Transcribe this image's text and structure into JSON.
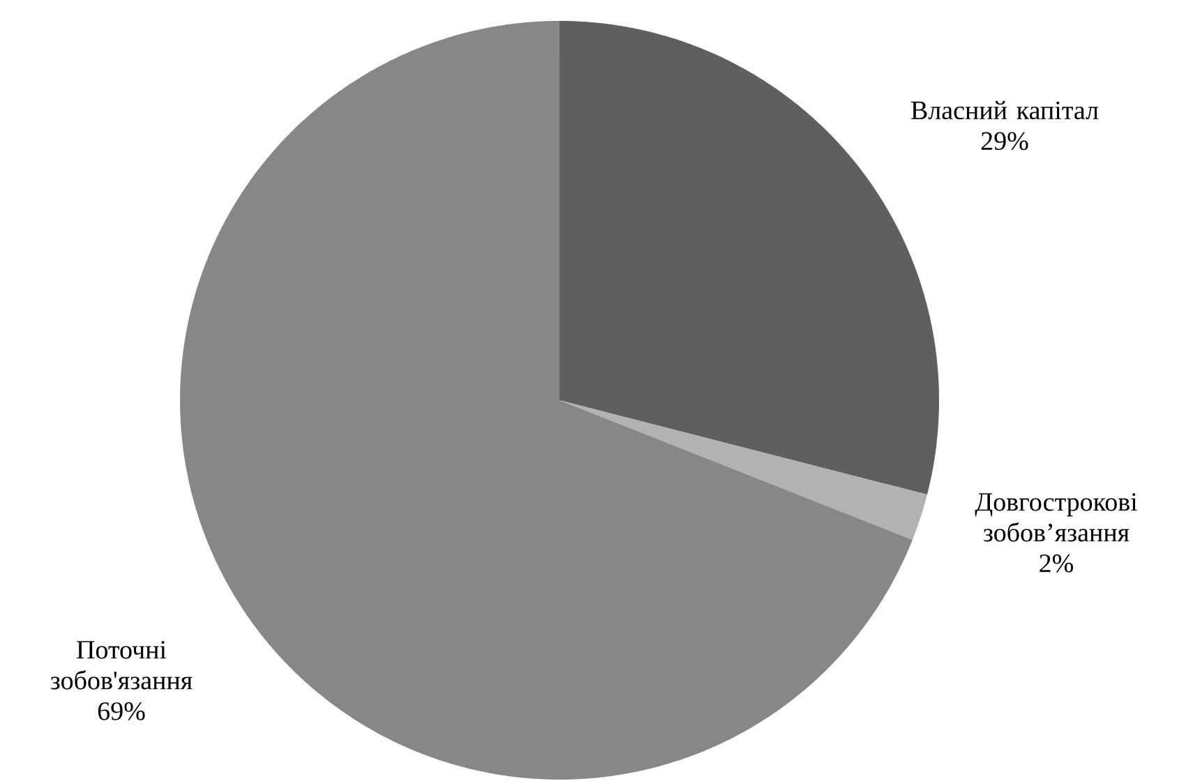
{
  "chart_data": {
    "type": "pie",
    "categories": [
      "Власний капітал",
      "Довгострокові зобов’язання",
      "Поточні зобов'язання"
    ],
    "values": [
      29,
      2,
      69
    ],
    "colors": [
      "#5f5f5f",
      "#b2b2b2",
      "#878787"
    ],
    "value_labels": [
      "29%",
      "2%",
      "69%"
    ]
  }
}
